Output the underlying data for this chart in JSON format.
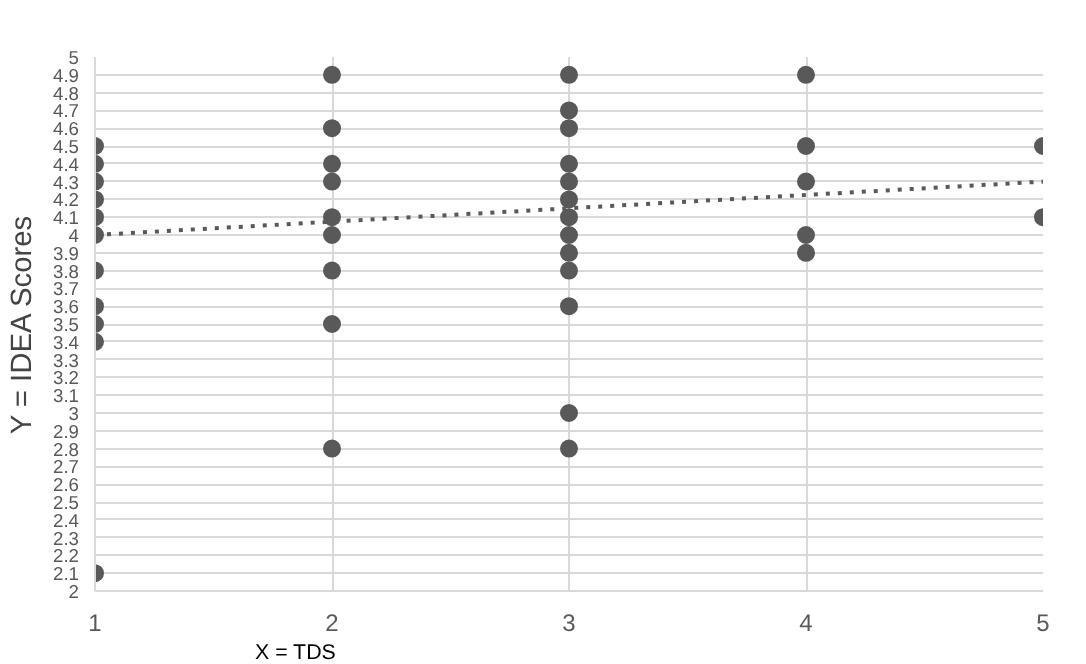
{
  "chart_data": {
    "type": "scatter",
    "xlabel": "X = TDS",
    "ylabel": "Y = IDEA Scores",
    "xlim": [
      1,
      5
    ],
    "xticks": [
      1,
      2,
      3,
      4,
      5
    ],
    "ylim": [
      2,
      5
    ],
    "yticks": [
      2,
      2.1,
      2.2,
      2.3,
      2.4,
      2.5,
      2.6,
      2.7,
      2.8,
      2.9,
      3,
      3.1,
      3.2,
      3.3,
      3.4,
      3.5,
      3.6,
      3.7,
      3.8,
      3.9,
      4,
      4.1,
      4.2,
      4.3,
      4.4,
      4.5,
      4.6,
      4.7,
      4.8,
      4.9,
      5
    ],
    "grid": true,
    "series": [
      {
        "marker": "circle",
        "color": "#595959",
        "x": [
          1,
          1,
          1,
          1,
          1,
          1,
          1,
          1,
          1,
          1,
          1,
          2,
          2,
          2,
          2,
          2,
          2,
          2,
          2,
          2,
          3,
          3,
          3,
          3,
          3,
          3,
          3,
          3,
          3,
          3,
          3,
          3,
          3,
          4,
          4,
          4,
          4,
          4,
          5,
          5
        ],
        "values": [
          4.5,
          4.4,
          4.3,
          4.2,
          4.1,
          4.0,
          3.8,
          3.6,
          3.5,
          3.4,
          2.1,
          4.9,
          4.6,
          4.4,
          4.3,
          4.1,
          4.0,
          3.8,
          3.5,
          2.8,
          4.9,
          4.7,
          4.6,
          4.4,
          4.3,
          4.2,
          4.1,
          4.0,
          3.9,
          3.8,
          3.6,
          3.0,
          2.8,
          4.9,
          4.5,
          4.3,
          4.0,
          3.9,
          4.5,
          4.1
        ]
      },
      {
        "type": "line",
        "color": "#595959",
        "line_style": "dotted",
        "x": [
          1,
          5
        ],
        "values": [
          4.0,
          4.3
        ]
      }
    ]
  }
}
